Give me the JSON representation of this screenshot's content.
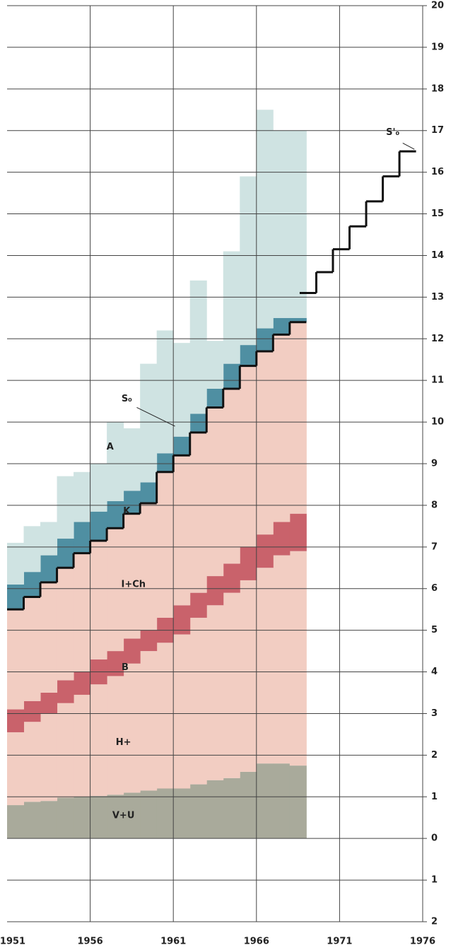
{
  "chart_data": {
    "type": "stacked-step",
    "x": [
      1951,
      1952,
      1953,
      1954,
      1955,
      1956,
      1957,
      1958,
      1959,
      1960,
      1961,
      1962,
      1963,
      1964,
      1965,
      1966,
      1967,
      1968
    ],
    "series": [
      {
        "name": "V+U",
        "color": "#a9aa9b",
        "values": [
          0.8,
          0.88,
          0.9,
          0.98,
          1.0,
          1.02,
          1.05,
          1.1,
          1.15,
          1.2,
          1.2,
          1.3,
          1.4,
          1.45,
          1.6,
          1.8,
          1.8,
          1.75
        ]
      },
      {
        "name": "H+",
        "color": "#f2cdc2",
        "values": [
          1.75,
          1.92,
          2.1,
          2.27,
          2.45,
          2.68,
          2.85,
          3.1,
          3.35,
          3.5,
          3.7,
          4.0,
          4.2,
          4.45,
          4.6,
          4.7,
          5.0,
          5.15
        ]
      },
      {
        "name": "B",
        "color": "#c9626b",
        "values": [
          0.55,
          0.5,
          0.5,
          0.55,
          0.55,
          0.6,
          0.6,
          0.6,
          0.5,
          0.6,
          0.7,
          0.6,
          0.7,
          0.7,
          0.8,
          0.8,
          0.8,
          0.9
        ]
      },
      {
        "name": "I+Ch",
        "color": "#f2cdc2",
        "values": [
          2.4,
          2.5,
          2.65,
          2.7,
          2.85,
          2.85,
          2.95,
          3.0,
          3.05,
          3.5,
          3.6,
          3.85,
          4.05,
          4.2,
          4.35,
          4.4,
          4.5,
          4.6
        ]
      },
      {
        "name": "K",
        "color": "#4f8fa2",
        "values": [
          0.6,
          0.6,
          0.65,
          0.7,
          0.75,
          0.7,
          0.65,
          0.55,
          0.5,
          0.45,
          0.45,
          0.45,
          0.45,
          0.6,
          0.5,
          0.55,
          0.4,
          0.1
        ]
      },
      {
        "name": "A",
        "color": "#cfe3e2",
        "values": [
          1.0,
          1.1,
          0.8,
          1.5,
          1.2,
          1.15,
          1.9,
          1.5,
          2.85,
          2.95,
          2.25,
          3.2,
          1.15,
          2.7,
          4.05,
          5.25,
          4.5,
          4.5
        ]
      }
    ],
    "annotation": "S₀",
    "forecast": {
      "name": "S'₀",
      "color": "#111111",
      "x": [
        1969,
        1970,
        1971,
        1972,
        1973,
        1974,
        1975
      ],
      "values": [
        13.1,
        13.6,
        14.15,
        14.7,
        15.3,
        15.9,
        16.5
      ]
    },
    "xlim": [
      1951,
      1976
    ],
    "xticks": [
      1951,
      1956,
      1961,
      1966,
      1971,
      1976
    ],
    "ylim": [
      -2,
      20
    ],
    "yticks": [
      {
        "value": -2,
        "label": "2"
      },
      {
        "value": -1,
        "label": "1"
      },
      0,
      1,
      2,
      3,
      4,
      5,
      6,
      7,
      8,
      9,
      10,
      11,
      12,
      13,
      14,
      15,
      16,
      17,
      18,
      19,
      20
    ],
    "grid": true
  }
}
